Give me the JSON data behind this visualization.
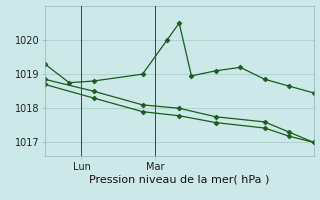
{
  "xlabel": "Pression niveau de la mer( hPa )",
  "background_color": "#cce8e8",
  "line_color": "#1a5c1a",
  "grid_color": "#aacece",
  "ylim": [
    1016.6,
    1021.0
  ],
  "xlim": [
    0,
    11
  ],
  "series1_x": [
    0,
    1,
    2,
    4,
    5,
    5.5,
    6,
    7,
    8,
    9,
    10,
    11
  ],
  "series1_y": [
    1019.3,
    1018.75,
    1018.8,
    1019.0,
    1020.0,
    1020.5,
    1018.95,
    1019.1,
    1019.2,
    1018.85,
    1018.65,
    1018.45
  ],
  "series2_x": [
    0,
    2,
    4,
    5.5,
    7,
    9,
    10,
    11
  ],
  "series2_y": [
    1018.85,
    1018.5,
    1018.1,
    1018.0,
    1017.75,
    1017.6,
    1017.3,
    1017.0
  ],
  "series3_x": [
    0,
    2,
    4,
    5.5,
    7,
    9,
    10,
    11
  ],
  "series3_y": [
    1018.7,
    1018.3,
    1017.9,
    1017.78,
    1017.58,
    1017.42,
    1017.18,
    1017.0
  ],
  "lun_x": 1.5,
  "mar_x": 4.5,
  "xtick_positions": [
    1.5,
    4.5
  ],
  "xtick_labels": [
    "Lun",
    "Mar"
  ],
  "ytick_positions": [
    1017,
    1018,
    1019,
    1020
  ],
  "figsize": [
    3.2,
    2.0
  ],
  "dpi": 100,
  "xlabel_fontsize": 8,
  "tick_fontsize": 7
}
